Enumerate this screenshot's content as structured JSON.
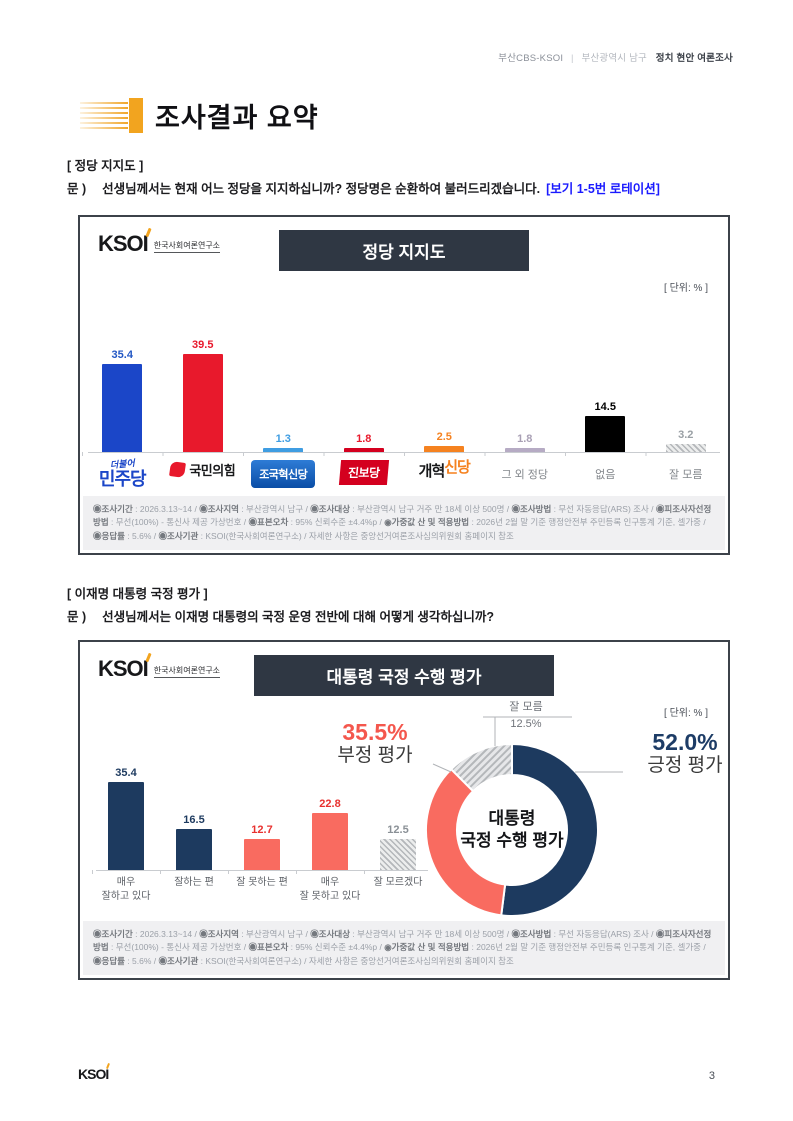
{
  "header": {
    "brand": "부산CBS-KSOI",
    "divider": "|",
    "region": "부산광역시 남구",
    "title": "정치 현안 여론조사"
  },
  "page_title": "조사결과 요약",
  "logo": {
    "text": "KSOI",
    "subtitle": "한국사회여론연구소"
  },
  "sections": [
    {
      "heading": "[ 정당 지지도 ]",
      "q_prefix": "문 )",
      "q_text": "선생님께서는 현재 어느 정당을 지지하십니까? 정당명은 순환하여 불러드리겠습니다.",
      "q_note": "[보기 1-5번 로테이션]"
    },
    {
      "heading": "[ 이재명 대통령 국정 평가 ]",
      "q_prefix": "문 )",
      "q_text": "선생님께서는 이재명 대통령의 국정 운영 전반에 대해 어떻게 생각하십니까?",
      "q_note": ""
    }
  ],
  "chart_data": [
    {
      "type": "bar",
      "title": "정당 지지도",
      "unit_label": "[ 단위: % ]",
      "categories": [
        "더불어민주당",
        "국민의힘",
        "조국혁신당",
        "진보당",
        "개혁신당",
        "그 외 정당",
        "없음",
        "잘 모름"
      ],
      "values": [
        35.4,
        39.5,
        1.3,
        1.8,
        2.5,
        1.8,
        14.5,
        3.2
      ],
      "bar_colors": [
        "#1b46c8",
        "#e8192c",
        "#3f9de2",
        "#d4001f",
        "#f58220",
        "#b6abc4",
        "#000000",
        "hatch"
      ],
      "value_colors": [
        "#2257c4",
        "#e8192c",
        "#3f9de2",
        "#e8192c",
        "#f58220",
        "#a9a0b5",
        "#000000",
        "#9aa0a5"
      ],
      "ylim": [
        0,
        45
      ],
      "label_styles": [
        {
          "kind": "logo-minjoo",
          "top": "더불어",
          "main": "민주당"
        },
        {
          "kind": "logo-ppp",
          "main": "국민의힘"
        },
        {
          "kind": "logo-rebuild",
          "main": "조국혁신당"
        },
        {
          "kind": "logo-jinbo",
          "main": "진보당"
        },
        {
          "kind": "logo-reform",
          "black": "개혁",
          "orange": "신당"
        },
        {
          "kind": "text",
          "main": "그 외 정당"
        },
        {
          "kind": "text",
          "main": "없음"
        },
        {
          "kind": "text",
          "main": "잘 모름"
        }
      ]
    },
    {
      "type": "bar+donut",
      "title": "대통령 국정 수행 평가",
      "unit_label": "[ 단위: % ]",
      "bar": {
        "categories": [
          [
            "매우",
            "잘하고 있다"
          ],
          [
            "잘하는 편"
          ],
          [
            "잘 못하는 편"
          ],
          [
            "매우",
            "잘 못하고 있다"
          ],
          [
            "잘 모르겠다"
          ]
        ],
        "values": [
          35.4,
          16.5,
          12.7,
          22.8,
          12.5
        ],
        "bar_colors": [
          "#1d3a5f",
          "#1d3a5f",
          "#f96b60",
          "#f96b60",
          "hatch"
        ],
        "value_colors": [
          "#1d3a5f",
          "#1d3a5f",
          "#e8312f",
          "#e8312f",
          "#8a9096"
        ]
      },
      "donut": {
        "center_line1": "대통령",
        "center_line2": "국정 수행 평가",
        "slices": [
          {
            "name": "긍정 평가",
            "value": 52.0,
            "color": "#1d3a5f"
          },
          {
            "name": "부정 평가",
            "value": 35.5,
            "color": "#f96b60"
          },
          {
            "name": "잘 모름",
            "value": 12.5,
            "color": "hatch"
          }
        ],
        "callouts": {
          "positive_pct": "52.0%",
          "positive_label": "긍정 평가",
          "negative_pct": "35.5%",
          "negative_label": "부정 평가",
          "dontknow_label": "잘 모름",
          "dontknow_pct": "12.5%"
        }
      }
    }
  ],
  "footnote_segments": [
    {
      "label": "◉조사기간",
      "text": " : 2026.3.13~14 / "
    },
    {
      "label": "◉조사지역",
      "text": " : 부산광역시 남구 / "
    },
    {
      "label": "◉조사대상",
      "text": " : 부산광역시 남구 거주 만 18세 이상 500명 / "
    },
    {
      "label": "◉조사방법",
      "text": " : 무선 자동응답(ARS) 조사 / "
    },
    {
      "label": "◉피조사자선정방법",
      "text": " : 무선(100%) - 통신사 제공 가상번호 / "
    },
    {
      "label": "◉표본오차",
      "text": " : 95% 신뢰수준 ±4.4%p / "
    },
    {
      "label": "◉가중값 산 및 적용방법",
      "text": " : 2026년 2월 말 기준 행정안전부 주민등록 인구통계 기준, 셀가중 / "
    },
    {
      "label": "◉응답률",
      "text": " : 5.6% / "
    },
    {
      "label": "◉조사기관",
      "text": " : KSOI(한국사회여론연구소) / 자세한 사항은 중앙선거여론조사심의위원회 홈페이지 참조"
    }
  ],
  "footer": {
    "page_number": "3"
  }
}
